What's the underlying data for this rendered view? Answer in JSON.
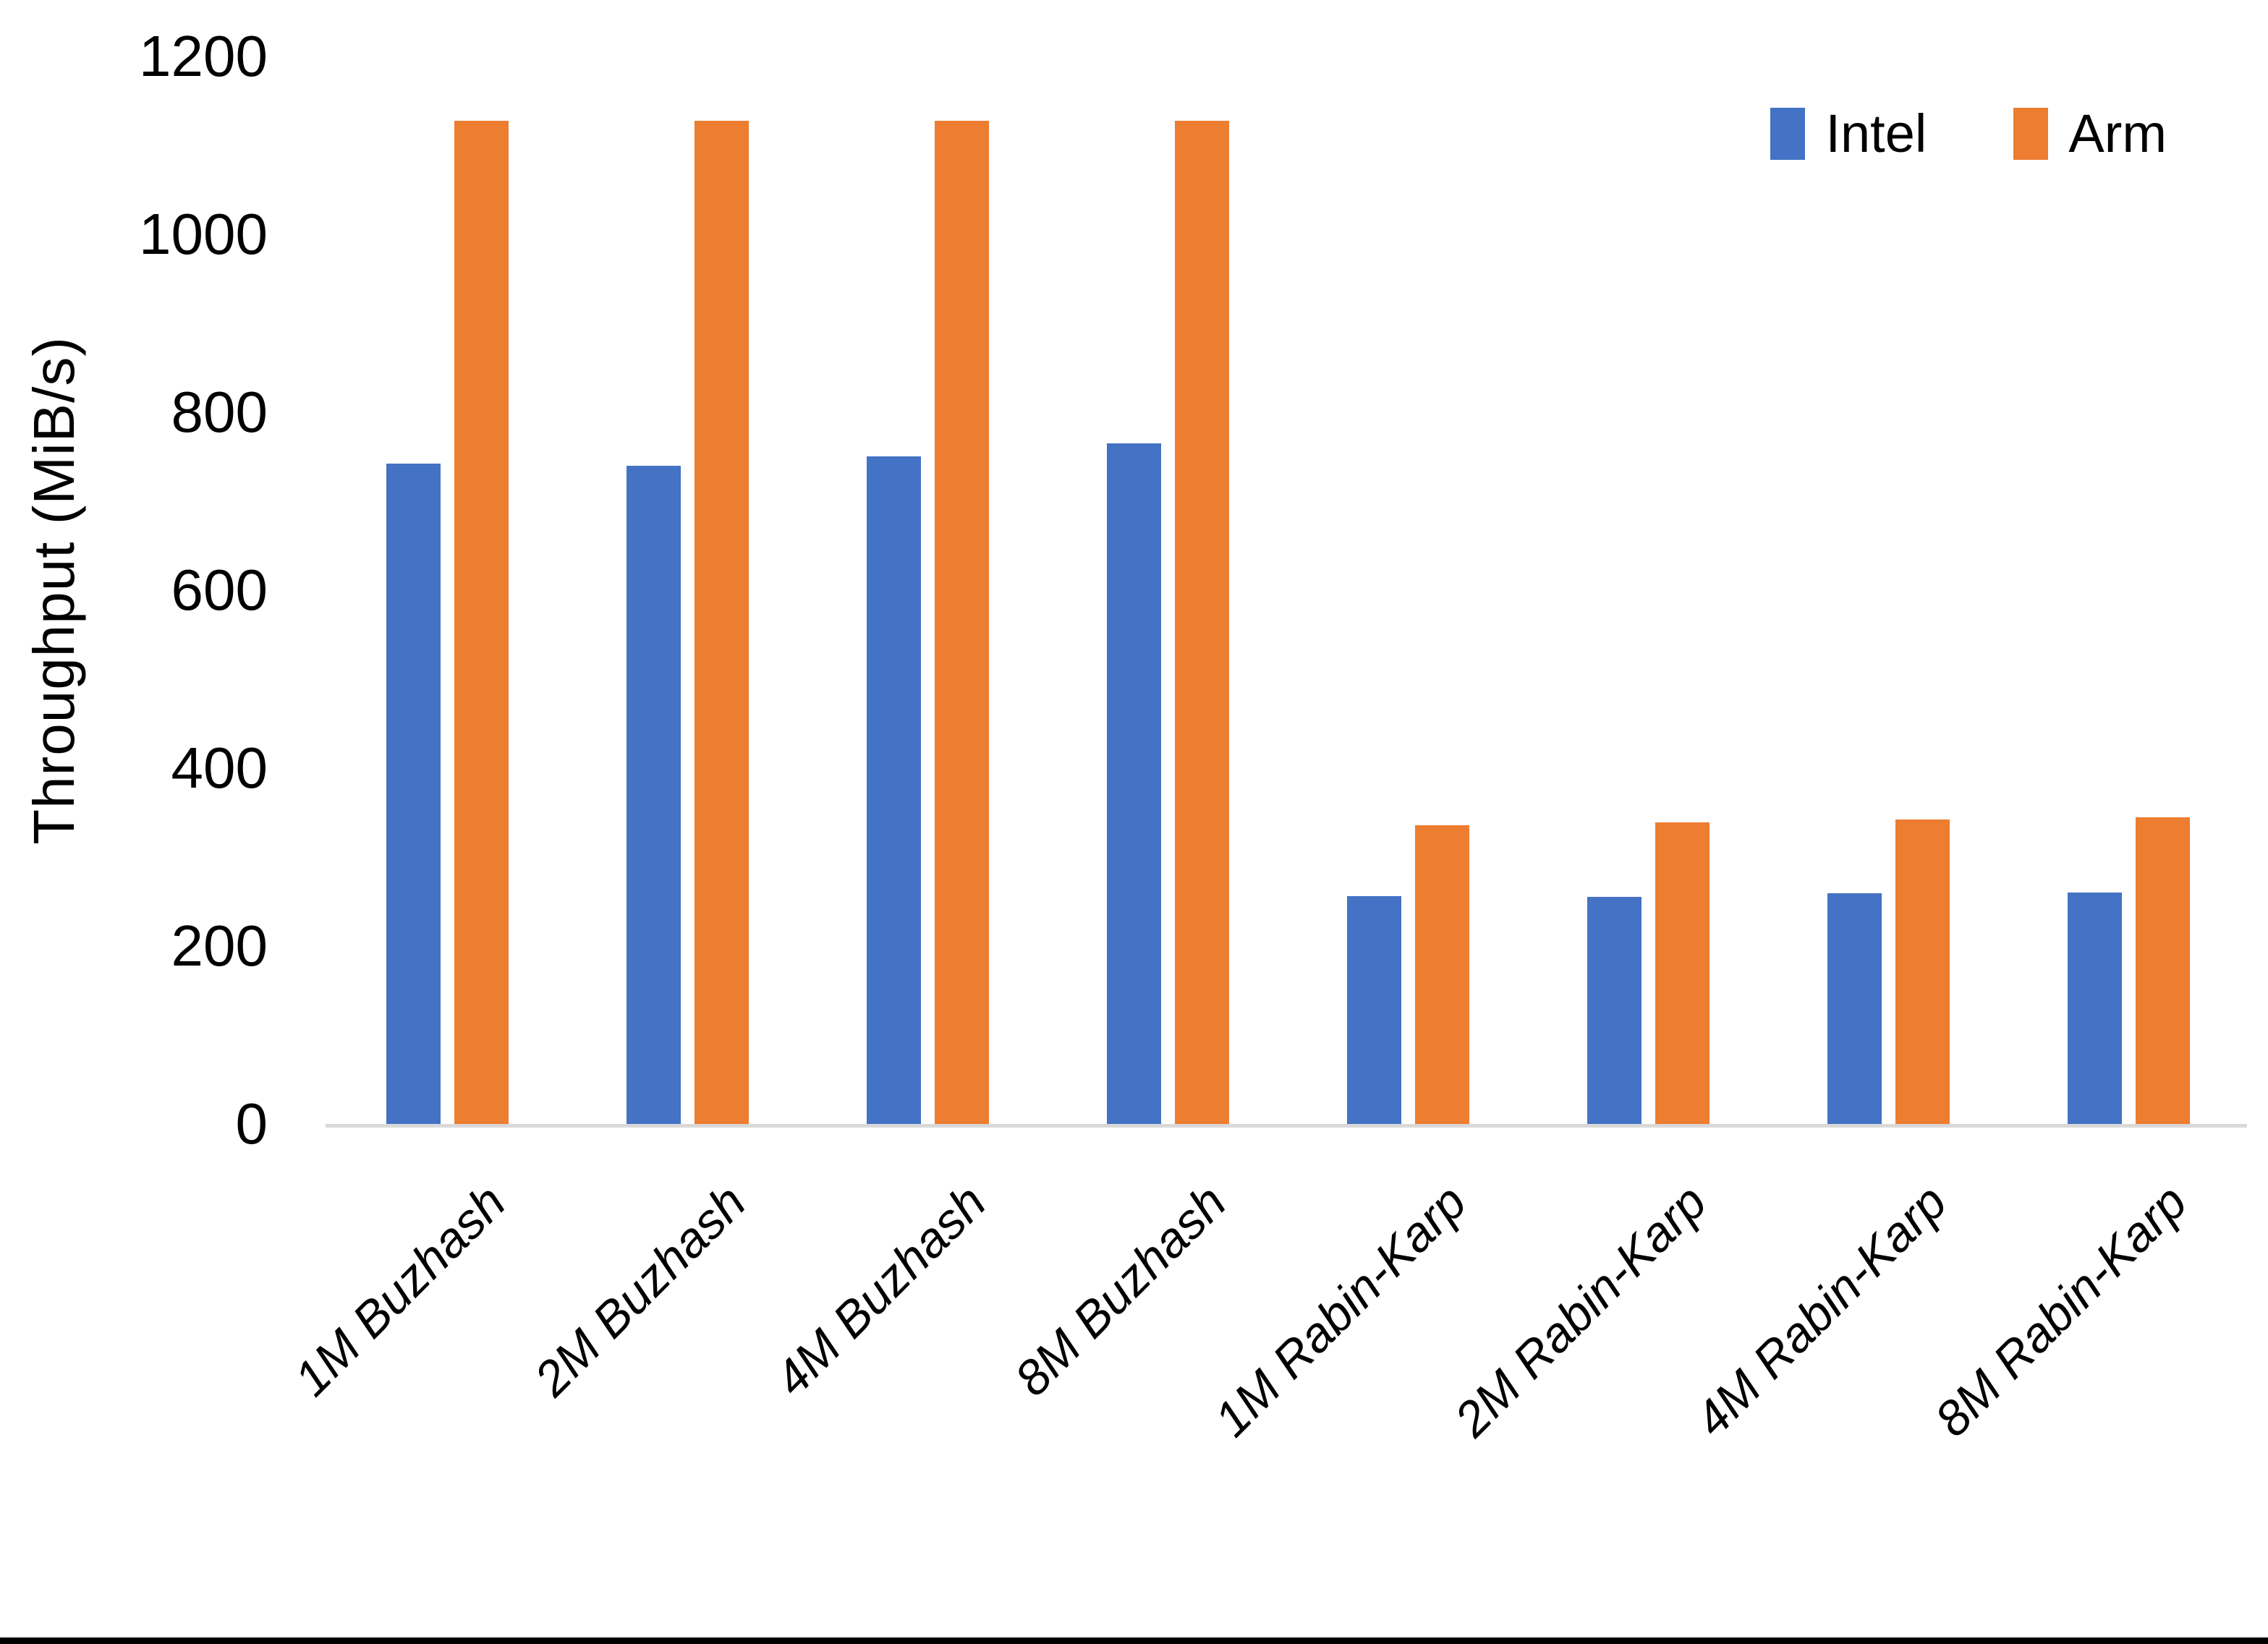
{
  "background": "#FFFFFF",
  "axis": {
    "line_color": "#D9D9D9",
    "text_color": "#000000"
  },
  "bottom_border_color": "#000000",
  "chart_data": {
    "type": "bar",
    "title": "",
    "xlabel": "",
    "ylabel": "Throughput (MiB/s)",
    "ylim": [
      0,
      1200
    ],
    "yticks": [
      0,
      200,
      400,
      600,
      800,
      1000,
      1200
    ],
    "grid": false,
    "legend_position": "top-right",
    "categories": [
      "1M Buzhash",
      "2M Buzhash",
      "4M Buzhash",
      "8M Buzhash",
      "1M Rabin-Karp",
      "2M Rabin-Karp",
      "4M Rabin-Karp",
      "8M Rabin-Karp"
    ],
    "series": [
      {
        "name": "Intel",
        "color": "#4472C4",
        "values": [
          742,
          740,
          750,
          765,
          256,
          255,
          259,
          260
        ]
      },
      {
        "name": "Arm",
        "color": "#ED7D31",
        "values": [
          1128,
          1128,
          1128,
          1128,
          336,
          339,
          342,
          345
        ]
      }
    ]
  }
}
